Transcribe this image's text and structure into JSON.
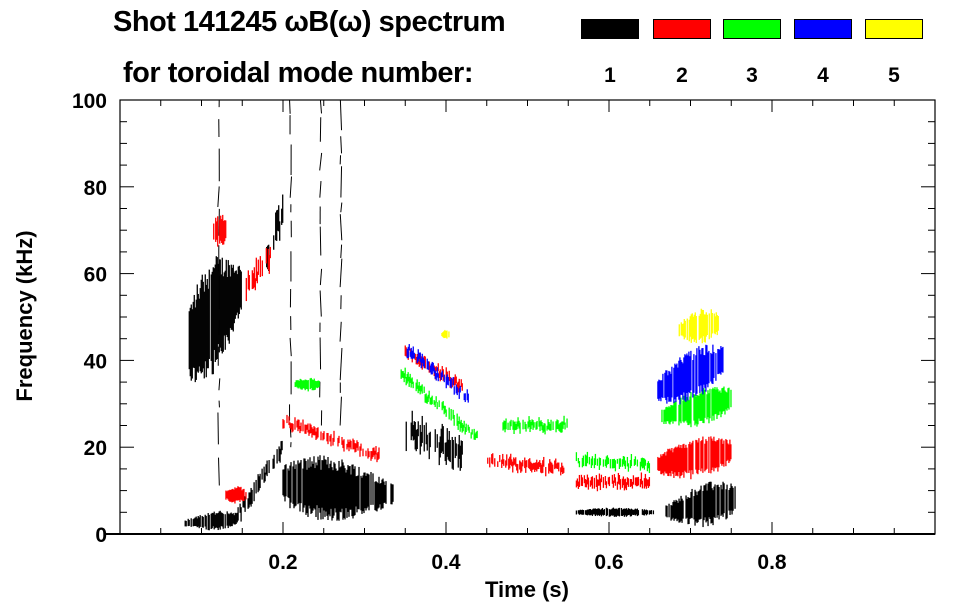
{
  "title_line1": "Shot 141245 ωB(ω) spectrum",
  "title_line2": "for toroidal mode number:",
  "legend": [
    {
      "label": "1",
      "color": "#000000"
    },
    {
      "label": "2",
      "color": "#ff0000"
    },
    {
      "label": "3",
      "color": "#00ff00"
    },
    {
      "label": "4",
      "color": "#0000ff"
    },
    {
      "label": "5",
      "color": "#ffff00"
    }
  ],
  "chart_data": {
    "type": "heatmap",
    "title": "Shot 141245 ωB(ω) spectrum for toroidal mode number",
    "xlabel": "Time (s)",
    "ylabel": "Frequency (kHz)",
    "xlim": [
      0,
      1.0
    ],
    "ylim": [
      0,
      100
    ],
    "xticks": [
      0.2,
      0.4,
      0.6,
      0.8
    ],
    "xtick_labels": [
      "0.2",
      "0.4",
      "0.6",
      "0.8"
    ],
    "yticks": [
      0,
      20,
      40,
      60,
      80,
      100
    ],
    "ytick_labels": [
      "0",
      "20",
      "40",
      "60",
      "80",
      "100"
    ],
    "features": [
      {
        "mode": 1,
        "kind": "blob",
        "t": [
          0.085,
          0.15
        ],
        "f0": [
          28,
          48
        ],
        "f1": [
          60,
          66
        ]
      },
      {
        "mode": 1,
        "kind": "band",
        "t": [
          0.14,
          0.2
        ],
        "f0": 3,
        "f1": 20,
        "w": 3
      },
      {
        "mode": 1,
        "kind": "band",
        "t": [
          0.18,
          0.2
        ],
        "f0": 62,
        "f1": 75,
        "w": 5
      },
      {
        "mode": 1,
        "kind": "blob",
        "t": [
          0.08,
          0.145
        ],
        "f0": [
          1,
          1
        ],
        "f1": [
          4,
          6
        ]
      },
      {
        "mode": 1,
        "kind": "blob",
        "t": [
          0.2,
          0.335
        ],
        "f0": [
          3,
          4
        ],
        "f1": [
          20,
          14
        ]
      },
      {
        "mode": 1,
        "kind": "band",
        "t": [
          0.35,
          0.42
        ],
        "f0": 24,
        "f1": 19,
        "w": 5
      },
      {
        "mode": 1,
        "kind": "blob",
        "t": [
          0.56,
          0.655
        ],
        "f0": [
          4,
          4
        ],
        "f1": [
          6,
          6
        ]
      },
      {
        "mode": 1,
        "kind": "blob",
        "t": [
          0.67,
          0.755
        ],
        "f0": [
          2,
          2
        ],
        "f1": [
          8,
          14
        ]
      },
      {
        "mode": 1,
        "kind": "spike",
        "t": [
          0.12,
          0.12
        ],
        "f0": 10,
        "f1": 100
      },
      {
        "mode": 1,
        "kind": "spike",
        "t": [
          0.208,
          0.208
        ],
        "f0": 20,
        "f1": 100
      },
      {
        "mode": 1,
        "kind": "spike",
        "t": [
          0.245,
          0.245
        ],
        "f0": 25,
        "f1": 100
      },
      {
        "mode": 1,
        "kind": "spike",
        "t": [
          0.27,
          0.27
        ],
        "f0": 25,
        "f1": 100
      },
      {
        "mode": 2,
        "kind": "band",
        "t": [
          0.155,
          0.185
        ],
        "f0": 56,
        "f1": 64,
        "w": 4
      },
      {
        "mode": 2,
        "kind": "blob",
        "t": [
          0.115,
          0.13
        ],
        "f0": [
          66,
          66
        ],
        "f1": [
          74,
          74
        ]
      },
      {
        "mode": 2,
        "kind": "blob",
        "t": [
          0.13,
          0.155
        ],
        "f0": [
          7,
          7
        ],
        "f1": [
          11,
          11
        ]
      },
      {
        "mode": 2,
        "kind": "band",
        "t": [
          0.2,
          0.32
        ],
        "f0": 26,
        "f1": 18,
        "w": 2
      },
      {
        "mode": 2,
        "kind": "band",
        "t": [
          0.35,
          0.42
        ],
        "f0": 42,
        "f1": 34,
        "w": 2
      },
      {
        "mode": 2,
        "kind": "band",
        "t": [
          0.45,
          0.545
        ],
        "f0": 17,
        "f1": 15,
        "w": 2
      },
      {
        "mode": 2,
        "kind": "band",
        "t": [
          0.56,
          0.65
        ],
        "f0": 12,
        "f1": 12,
        "w": 2
      },
      {
        "mode": 2,
        "kind": "blob",
        "t": [
          0.66,
          0.75
        ],
        "f0": [
          12,
          14
        ],
        "f1": [
          20,
          24
        ]
      },
      {
        "mode": 3,
        "kind": "band",
        "t": [
          0.345,
          0.44
        ],
        "f0": 37,
        "f1": 22,
        "w": 2
      },
      {
        "mode": 3,
        "kind": "band",
        "t": [
          0.47,
          0.55
        ],
        "f0": 25,
        "f1": 25,
        "w": 2
      },
      {
        "mode": 3,
        "kind": "band",
        "t": [
          0.56,
          0.65
        ],
        "f0": 17,
        "f1": 16,
        "w": 2
      },
      {
        "mode": 3,
        "kind": "blob",
        "t": [
          0.665,
          0.75
        ],
        "f0": [
          24,
          26
        ],
        "f1": [
          30,
          36
        ]
      },
      {
        "mode": 3,
        "kind": "blob",
        "t": [
          0.215,
          0.245
        ],
        "f0": [
          33,
          33
        ],
        "f1": [
          36,
          36
        ]
      },
      {
        "mode": 4,
        "kind": "band",
        "t": [
          0.35,
          0.43
        ],
        "f0": 43,
        "f1": 31,
        "w": 2
      },
      {
        "mode": 4,
        "kind": "blob",
        "t": [
          0.66,
          0.74
        ],
        "f0": [
          28,
          34
        ],
        "f1": [
          38,
          46
        ]
      },
      {
        "mode": 5,
        "kind": "blob",
        "t": [
          0.685,
          0.735
        ],
        "f0": [
          44,
          44
        ],
        "f1": [
          50,
          53
        ]
      },
      {
        "mode": 5,
        "kind": "blob",
        "t": [
          0.395,
          0.405
        ],
        "f0": [
          45,
          45
        ],
        "f1": [
          47,
          47
        ]
      }
    ]
  }
}
